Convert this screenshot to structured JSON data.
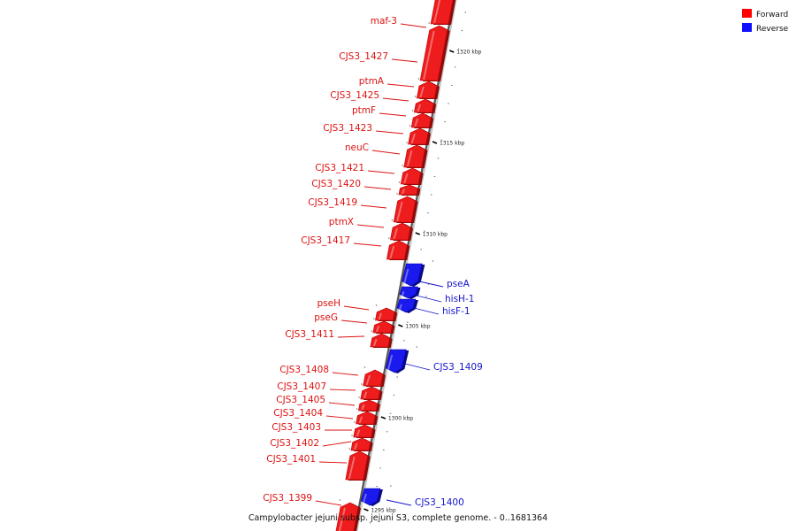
{
  "title": "Campylobacter jejuni subsp. jejuni S3, complete genome. - 0..1681364",
  "legend": {
    "forward": {
      "label": "Forward",
      "color": "#ff0000"
    },
    "reverse": {
      "label": "Reverse",
      "color": "#1010ff"
    }
  },
  "strands": {
    "forward_color": "#ee1c1c",
    "reverse_color": "#1a1aee"
  },
  "ticks": [
    {
      "kbp": 1320,
      "label": "1320 kbp"
    },
    {
      "kbp": 1315,
      "label": "1315 kbp"
    },
    {
      "kbp": 1310,
      "label": "1310 kbp"
    },
    {
      "kbp": 1305,
      "label": "1305 kbp"
    },
    {
      "kbp": 1300,
      "label": "1300 kbp"
    },
    {
      "kbp": 1295,
      "label": "1295 kbp"
    }
  ],
  "genes": [
    {
      "name": "maf-3",
      "strand": "forward"
    },
    {
      "name": "CJS3_1427",
      "strand": "forward"
    },
    {
      "name": "ptmA",
      "strand": "forward"
    },
    {
      "name": "CJS3_1425",
      "strand": "forward"
    },
    {
      "name": "ptmF",
      "strand": "forward"
    },
    {
      "name": "CJS3_1423",
      "strand": "forward"
    },
    {
      "name": "neuC",
      "strand": "forward"
    },
    {
      "name": "CJS3_1421",
      "strand": "forward"
    },
    {
      "name": "CJS3_1420",
      "strand": "forward"
    },
    {
      "name": "CJS3_1419",
      "strand": "forward"
    },
    {
      "name": "ptmX",
      "strand": "forward"
    },
    {
      "name": "CJS3_1417",
      "strand": "forward"
    },
    {
      "name": "pseA",
      "strand": "reverse"
    },
    {
      "name": "hisH-1",
      "strand": "reverse"
    },
    {
      "name": "hisF-1",
      "strand": "reverse"
    },
    {
      "name": "pseH",
      "strand": "forward"
    },
    {
      "name": "pseG",
      "strand": "forward"
    },
    {
      "name": "CJS3_1411",
      "strand": "forward"
    },
    {
      "name": "CJS3_1409",
      "strand": "reverse"
    },
    {
      "name": "CJS3_1408",
      "strand": "forward"
    },
    {
      "name": "CJS3_1407",
      "strand": "forward"
    },
    {
      "name": "CJS3_1405",
      "strand": "forward"
    },
    {
      "name": "CJS3_1404",
      "strand": "forward"
    },
    {
      "name": "CJS3_1403",
      "strand": "forward"
    },
    {
      "name": "CJS3_1402",
      "strand": "forward"
    },
    {
      "name": "CJS3_1401",
      "strand": "forward"
    },
    {
      "name": "CJS3_1399",
      "strand": "forward"
    },
    {
      "name": "CJS3_1400",
      "strand": "reverse"
    }
  ]
}
